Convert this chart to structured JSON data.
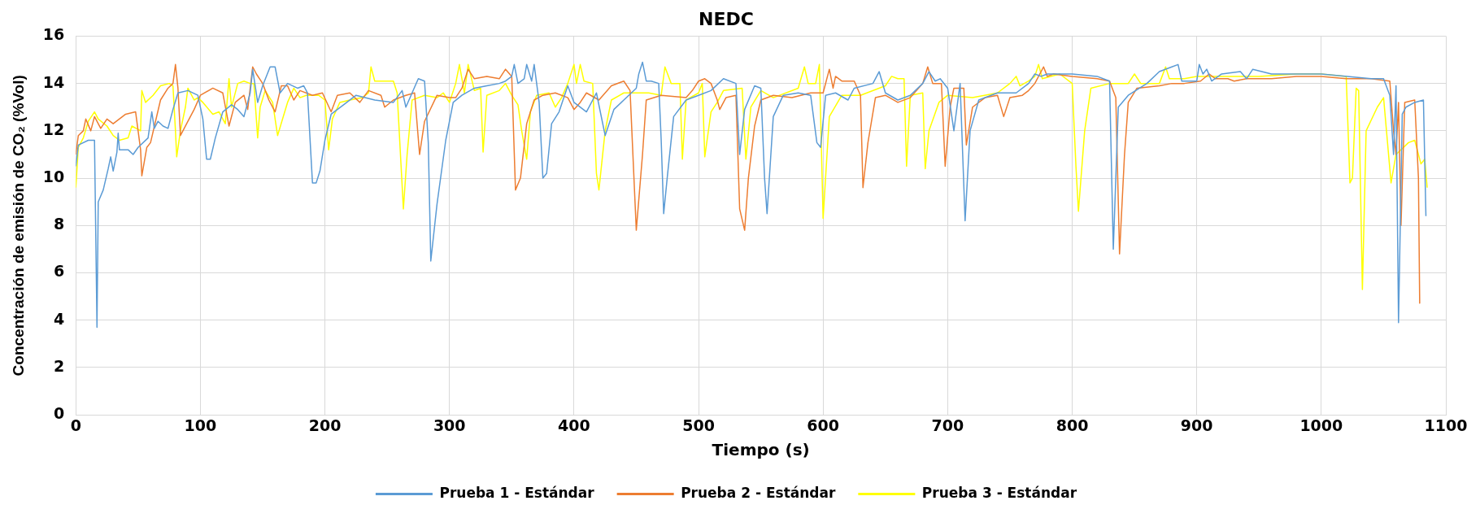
{
  "chart_data": {
    "type": "line",
    "title": "NEDC",
    "xlabel": "Tiempo (s)",
    "ylabel": "Concentración de emisión de CO₂ (%Vol)",
    "xlim": [
      0,
      1100
    ],
    "xticks": [
      0,
      100,
      200,
      300,
      400,
      500,
      600,
      700,
      800,
      900,
      1000,
      1100
    ],
    "ylim": [
      0,
      16
    ],
    "yticks": [
      0,
      2,
      4,
      6,
      8,
      10,
      12,
      14,
      16
    ],
    "grid": true,
    "legend": "bottom",
    "marker": "none",
    "line_style": "solid",
    "series": [
      {
        "name": "Prueba 1 - Estándar",
        "color": "#5b9bd5",
        "x": [
          0,
          2,
          10,
          15,
          17,
          18,
          22,
          26,
          28,
          30,
          33,
          34,
          35,
          42,
          46,
          50,
          58,
          61,
          63,
          66,
          70,
          74,
          78,
          82,
          90,
          98,
          102,
          105,
          108,
          112,
          118,
          125,
          130,
          135,
          140,
          142,
          146,
          150,
          156,
          160,
          164,
          170,
          178,
          183,
          186,
          190,
          193,
          196,
          200,
          205,
          215,
          225,
          240,
          255,
          262,
          265,
          270,
          275,
          280,
          283,
          285,
          290,
          297,
          303,
          310,
          320,
          330,
          340,
          345,
          350,
          352,
          355,
          360,
          362,
          366,
          368,
          372,
          375,
          378,
          382,
          388,
          395,
          400,
          410,
          418,
          425,
          432,
          440,
          450,
          452,
          455,
          458,
          462,
          468,
          470,
          472,
          475,
          480,
          490,
          500,
          510,
          520,
          530,
          533,
          537,
          545,
          550,
          553,
          555,
          560,
          568,
          580,
          590,
          595,
          598,
          602,
          610,
          620,
          625,
          640,
          645,
          650,
          660,
          670,
          680,
          685,
          690,
          694,
          700,
          705,
          710,
          714,
          718,
          725,
          740,
          755,
          765,
          770,
          775,
          780,
          800,
          820,
          830,
          833,
          837,
          845,
          860,
          870,
          880,
          885,
          888,
          900,
          902,
          905,
          908,
          912,
          920,
          935,
          940,
          945,
          960,
          1000,
          1040,
          1050,
          1055,
          1058,
          1060,
          1062,
          1065,
          1068,
          1075,
          1082,
          1084
        ],
        "values": [
          10.5,
          11.4,
          11.6,
          11.6,
          3.7,
          9,
          9.5,
          10.4,
          10.9,
          10.3,
          11.1,
          11.9,
          11.2,
          11.2,
          11.0,
          11.3,
          11.7,
          12.8,
          12.1,
          12.4,
          12.2,
          12.1,
          12.9,
          13.6,
          13.7,
          13.5,
          12.5,
          10.8,
          10.8,
          11.7,
          12.8,
          13.1,
          12.9,
          12.6,
          13.6,
          14.6,
          13.2,
          13.9,
          14.7,
          14.7,
          13.6,
          14.0,
          13.8,
          13.9,
          13.6,
          9.8,
          9.8,
          10.3,
          11.6,
          12.7,
          13.1,
          13.5,
          13.3,
          13.2,
          13.7,
          13.0,
          13.6,
          14.2,
          14.1,
          11.5,
          6.5,
          8.9,
          11.6,
          13.2,
          13.5,
          13.8,
          13.9,
          14.0,
          14.1,
          14.3,
          14.8,
          14.0,
          14.2,
          14.8,
          14.1,
          14.8,
          13.2,
          10.0,
          10.2,
          12.3,
          12.8,
          13.9,
          13.2,
          12.8,
          13.6,
          11.8,
          12.9,
          13.3,
          13.8,
          14.4,
          14.9,
          14.1,
          14.1,
          14.0,
          11.6,
          8.5,
          10.1,
          12.6,
          13.3,
          13.5,
          13.7,
          14.2,
          14.0,
          11.0,
          12.9,
          13.9,
          13.8,
          10.0,
          8.5,
          12.6,
          13.5,
          13.6,
          13.5,
          11.5,
          11.3,
          13.5,
          13.6,
          13.3,
          13.8,
          14.0,
          14.5,
          13.6,
          13.3,
          13.5,
          14.0,
          14.5,
          14.1,
          14.2,
          13.8,
          12.0,
          14.0,
          8.2,
          12.0,
          13.3,
          13.6,
          13.6,
          14.0,
          14.4,
          14.3,
          14.4,
          14.4,
          14.3,
          14.1,
          7.0,
          13.0,
          13.5,
          14.0,
          14.5,
          14.7,
          14.8,
          14.1,
          14.1,
          14.8,
          14.4,
          14.6,
          14.1,
          14.4,
          14.5,
          14.2,
          14.6,
          14.4,
          14.4,
          14.2,
          14.2,
          13.5,
          11.0,
          13.9,
          3.9,
          12.7,
          13.0,
          13.2,
          13.3,
          8.4
        ]
      },
      {
        "name": "Prueba 2 - Estándar",
        "color": "#ed7d31",
        "x": [
          0,
          2,
          6,
          8,
          12,
          15,
          20,
          25,
          30,
          40,
          48,
          52,
          53,
          57,
          60,
          68,
          74,
          78,
          80,
          82,
          84,
          90,
          95,
          100,
          110,
          118,
          123,
          128,
          135,
          138,
          142,
          145,
          150,
          155,
          160,
          165,
          170,
          175,
          180,
          190,
          198,
          205,
          210,
          220,
          228,
          235,
          245,
          248,
          255,
          265,
          272,
          276,
          280,
          290,
          300,
          305,
          310,
          315,
          320,
          330,
          340,
          345,
          350,
          353,
          357,
          362,
          368,
          375,
          385,
          395,
          400,
          405,
          410,
          420,
          430,
          440,
          445,
          450,
          455,
          458,
          470,
          490,
          495,
          500,
          505,
          510,
          515,
          517,
          522,
          530,
          533,
          537,
          540,
          545,
          550,
          560,
          575,
          590,
          600,
          605,
          608,
          610,
          615,
          625,
          630,
          632,
          636,
          642,
          650,
          660,
          670,
          680,
          684,
          688,
          695,
          698,
          702,
          705,
          713,
          715,
          720,
          730,
          740,
          745,
          750,
          760,
          765,
          770,
          777,
          780,
          785,
          800,
          820,
          830,
          835,
          838,
          842,
          845,
          852,
          870,
          880,
          890,
          903,
          910,
          915,
          925,
          930,
          940,
          960,
          980,
          1000,
          1020,
          1040,
          1055,
          1058,
          1060,
          1062,
          1064,
          1067,
          1075,
          1078,
          1079
        ],
        "values": [
          11.0,
          11.8,
          12.0,
          12.5,
          12.0,
          12.6,
          12.1,
          12.5,
          12.3,
          12.7,
          12.8,
          11.2,
          10.1,
          11.3,
          11.5,
          13.3,
          13.8,
          14.0,
          14.8,
          13.8,
          11.8,
          12.4,
          12.9,
          13.5,
          13.8,
          13.6,
          12.2,
          13.2,
          13.5,
          12.9,
          14.7,
          14.4,
          14.0,
          13.3,
          12.8,
          13.9,
          13.9,
          13.3,
          13.7,
          13.5,
          13.6,
          12.8,
          13.5,
          13.6,
          13.2,
          13.7,
          13.5,
          13.0,
          13.3,
          13.5,
          13.6,
          11.0,
          12.4,
          13.5,
          13.4,
          13.4,
          13.8,
          14.6,
          14.2,
          14.3,
          14.2,
          14.6,
          14.3,
          9.5,
          10.0,
          12.3,
          13.3,
          13.5,
          13.6,
          13.4,
          12.9,
          13.2,
          13.6,
          13.3,
          13.9,
          14.1,
          13.7,
          7.8,
          11.0,
          13.3,
          13.5,
          13.4,
          13.7,
          14.1,
          14.2,
          14.0,
          13.3,
          12.9,
          13.4,
          13.5,
          8.7,
          7.8,
          10.0,
          12.2,
          13.3,
          13.5,
          13.4,
          13.6,
          13.6,
          14.6,
          13.8,
          14.3,
          14.1,
          14.1,
          13.5,
          9.6,
          11.5,
          13.4,
          13.5,
          13.2,
          13.4,
          14.0,
          14.7,
          14.0,
          14.0,
          10.5,
          13.0,
          13.8,
          13.8,
          11.4,
          13.0,
          13.4,
          13.5,
          12.6,
          13.4,
          13.5,
          13.7,
          14.0,
          14.7,
          14.3,
          14.4,
          14.3,
          14.2,
          14.1,
          13.4,
          6.8,
          11.0,
          13.2,
          13.8,
          13.9,
          14.0,
          14.0,
          14.1,
          14.4,
          14.2,
          14.2,
          14.1,
          14.2,
          14.2,
          14.3,
          14.3,
          14.2,
          14.2,
          14.1,
          12.0,
          11.0,
          13.2,
          8.0,
          13.2,
          13.3,
          10.0,
          4.7
        ]
      },
      {
        "name": "Prueba 3 - Estándar",
        "color": "#ffff00",
        "x": [
          0,
          2,
          6,
          10,
          15,
          18,
          25,
          30,
          35,
          42,
          45,
          52,
          53,
          56,
          62,
          68,
          75,
          78,
          80,
          81,
          84,
          88,
          90,
          95,
          98,
          102,
          110,
          115,
          120,
          123,
          125,
          130,
          135,
          140,
          143,
          146,
          148,
          152,
          158,
          162,
          166,
          170,
          175,
          180,
          185,
          195,
          200,
          203,
          206,
          212,
          220,
          230,
          235,
          237,
          240,
          255,
          258,
          263,
          266,
          270,
          280,
          290,
          295,
          300,
          305,
          308,
          312,
          315,
          320,
          325,
          327,
          330,
          340,
          345,
          350,
          355,
          358,
          362,
          365,
          370,
          380,
          385,
          390,
          395,
          400,
          402,
          405,
          408,
          415,
          418,
          420,
          425,
          430,
          440,
          450,
          460,
          470,
          473,
          478,
          485,
          487,
          490,
          500,
          503,
          505,
          510,
          515,
          520,
          535,
          538,
          542,
          550,
          560,
          580,
          585,
          588,
          594,
          597,
          600,
          605,
          615,
          630,
          650,
          655,
          660,
          665,
          667,
          670,
          680,
          682,
          685,
          693,
          700,
          720,
          740,
          750,
          755,
          758,
          765,
          770,
          773,
          776,
          790,
          800,
          803,
          805,
          810,
          815,
          830,
          845,
          850,
          855,
          870,
          875,
          878,
          890,
          900,
          950,
          980,
          1000,
          1020,
          1023,
          1025,
          1028,
          1030,
          1033,
          1036,
          1045,
          1050,
          1054,
          1056,
          1060,
          1070,
          1075,
          1080,
          1083,
          1085
        ],
        "values": [
          9.6,
          11.3,
          11.7,
          12.4,
          12.8,
          12.5,
          12.2,
          11.8,
          11.6,
          11.7,
          12.2,
          12.0,
          13.7,
          13.2,
          13.5,
          13.9,
          14.0,
          13.9,
          12.0,
          10.9,
          12.0,
          13.0,
          13.8,
          13.3,
          13.4,
          13.2,
          12.7,
          12.8,
          12.3,
          14.2,
          13.0,
          14.0,
          14.1,
          14.0,
          14.0,
          11.7,
          13.0,
          13.7,
          13.2,
          11.8,
          12.5,
          13.2,
          13.8,
          13.4,
          13.5,
          13.5,
          13.3,
          11.2,
          12.5,
          13.2,
          13.3,
          13.4,
          13.6,
          14.7,
          14.1,
          14.1,
          13.6,
          8.7,
          11.0,
          13.3,
          13.5,
          13.4,
          13.6,
          13.2,
          14.0,
          14.8,
          13.6,
          14.8,
          13.7,
          13.8,
          11.1,
          13.5,
          13.7,
          14.0,
          13.5,
          13.1,
          12.0,
          10.8,
          12.8,
          13.5,
          13.6,
          13.0,
          13.4,
          14.0,
          14.8,
          14.0,
          14.8,
          14.1,
          14.0,
          10.2,
          9.5,
          12.0,
          13.3,
          13.6,
          13.6,
          13.6,
          13.5,
          14.7,
          14.0,
          14.0,
          10.8,
          13.3,
          13.6,
          14.0,
          10.9,
          12.8,
          13.2,
          13.7,
          13.8,
          10.8,
          13.0,
          13.7,
          13.4,
          13.8,
          14.7,
          14.0,
          14.0,
          14.8,
          8.3,
          12.6,
          13.5,
          13.5,
          13.9,
          14.3,
          14.2,
          14.2,
          10.5,
          13.5,
          13.6,
          10.4,
          12.0,
          13.2,
          13.5,
          13.4,
          13.6,
          14.0,
          14.3,
          13.9,
          14.1,
          14.3,
          14.8,
          14.2,
          14.4,
          14.0,
          10.5,
          8.6,
          12.0,
          13.8,
          14.0,
          14.0,
          14.4,
          14.0,
          14.0,
          14.7,
          14.2,
          14.2,
          14.3,
          14.3,
          14.4,
          14.4,
          14.3,
          9.8,
          10.0,
          13.8,
          13.7,
          5.3,
          12.0,
          13.0,
          13.4,
          11.0,
          9.8,
          11.0,
          11.5,
          11.6,
          10.6,
          10.8,
          9.6
        ]
      }
    ]
  }
}
